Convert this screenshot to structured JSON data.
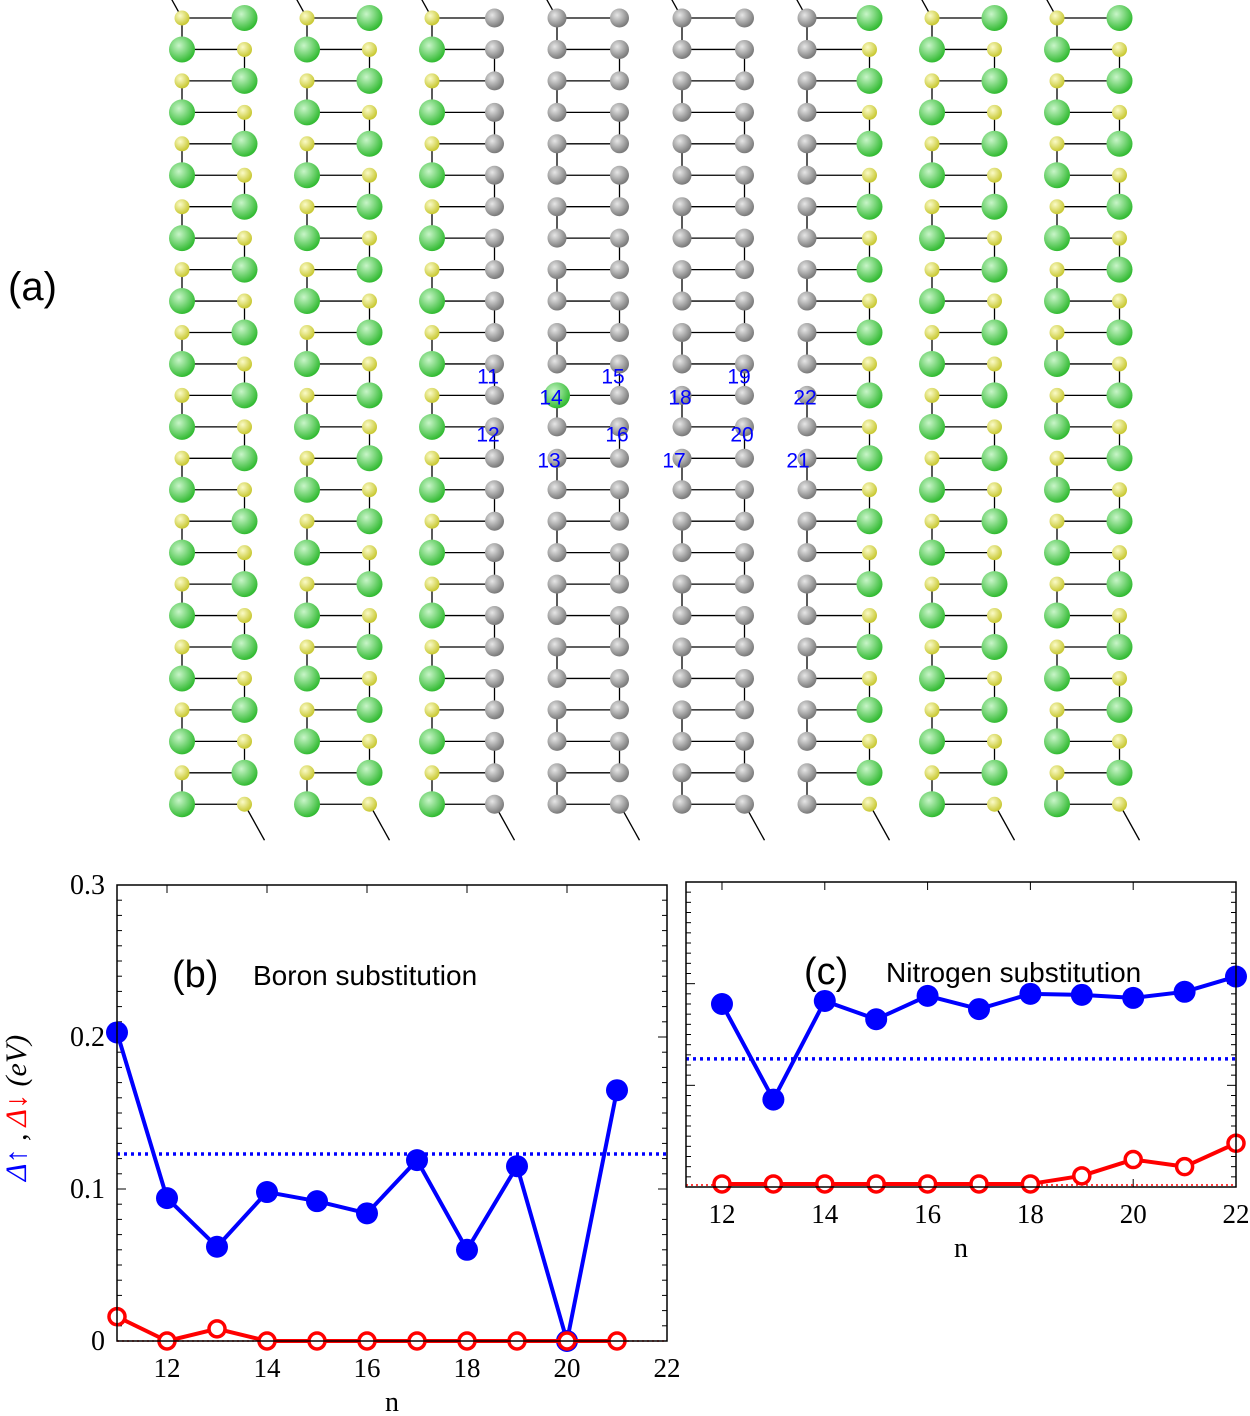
{
  "panel_a": {
    "label": "(a)",
    "site_labels": [
      "11",
      "12",
      "13",
      "14",
      "15",
      "16",
      "17",
      "18",
      "19",
      "20",
      "21",
      "22"
    ],
    "colors": {
      "green_atom": "#33bb33",
      "yellow_atom": "#c8c832",
      "gray_atom": "#7a7a7a",
      "bond": "#000000",
      "site_label": "#0000ff"
    }
  },
  "chart_data": [
    {
      "type": "line",
      "panel_label": "(b)",
      "title": "Boron substitution",
      "xlabel": "n",
      "ylabel_parts": [
        "Δ↑",
        " , ",
        "Δ↓",
        " (eV)"
      ],
      "xlim": [
        11,
        22
      ],
      "ylim": [
        0,
        0.3
      ],
      "xticks": [
        12,
        14,
        16,
        18,
        20,
        22
      ],
      "yticks": [
        0,
        0.1,
        0.2,
        0.3
      ],
      "ytick_labels": [
        "0",
        "0.1",
        "0.2",
        "0.3"
      ],
      "series": [
        {
          "color": "#0000ff",
          "marker": "filled",
          "x": [
            11,
            12,
            13,
            14,
            15,
            16,
            17,
            18,
            19,
            20,
            21
          ],
          "y": [
            0.203,
            0.094,
            0.062,
            0.098,
            0.092,
            0.084,
            0.119,
            0.06,
            0.115,
            0.0,
            0.165
          ]
        },
        {
          "color": "#ff0000",
          "marker": "open",
          "x": [
            11,
            12,
            13,
            14,
            15,
            16,
            17,
            18,
            19,
            20,
            21
          ],
          "y": [
            0.016,
            0.0,
            0.008,
            0.0,
            0.0,
            0.0,
            0.0,
            0.0,
            0.0,
            0.0,
            0.0
          ]
        }
      ],
      "reference_lines": [
        {
          "y": 0.123,
          "color": "#0000ff",
          "style": "dotted"
        },
        {
          "y": 0.0,
          "color": "#ff0000",
          "style": "dotted"
        }
      ]
    },
    {
      "type": "line",
      "panel_label": "(c)",
      "title": "Nitrogen substitution",
      "xlabel": "n",
      "xlim": [
        11.3,
        22
      ],
      "ylim": [
        0,
        0.3
      ],
      "xticks": [
        12,
        14,
        16,
        18,
        20,
        22
      ],
      "series": [
        {
          "color": "#0000ff",
          "marker": "filled",
          "x": [
            12,
            13,
            14,
            15,
            16,
            17,
            18,
            19,
            20,
            21,
            22
          ],
          "y": [
            0.18,
            0.086,
            0.183,
            0.165,
            0.188,
            0.175,
            0.19,
            0.189,
            0.186,
            0.192,
            0.207
          ]
        },
        {
          "color": "#ff0000",
          "marker": "open",
          "x": [
            12,
            13,
            14,
            15,
            16,
            17,
            18,
            19,
            20,
            21,
            22
          ],
          "y": [
            0.003,
            0.003,
            0.003,
            0.003,
            0.003,
            0.003,
            0.003,
            0.011,
            0.027,
            0.02,
            0.043
          ]
        }
      ],
      "reference_lines": [
        {
          "y": 0.126,
          "color": "#0000ff",
          "style": "dotted"
        },
        {
          "y": 0.002,
          "color": "#ff0000",
          "style": "dotted"
        }
      ]
    }
  ]
}
